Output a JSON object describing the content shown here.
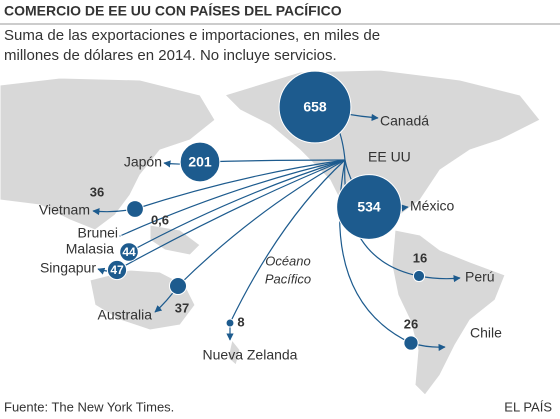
{
  "header": {
    "title": "COMERCIO DE EE UU CON PAÍSES DEL PACÍFICO",
    "subtitle_lines": [
      "Suma de las exportaciones e importaciones, en miles de",
      "millones de dólares en 2014. No incluye servicios."
    ]
  },
  "hub": "EE UU",
  "ocean_lines": [
    "Océano",
    "Pacífico"
  ],
  "flows": [
    {
      "name": "Canadá",
      "value": 658
    },
    {
      "name": "Japón",
      "value": 201
    },
    {
      "name": "México",
      "value": 534
    },
    {
      "name": "Vietnam",
      "value": 36
    },
    {
      "name": "Brunei",
      "value": 0.6,
      "value_label": "0,6"
    },
    {
      "name": "Malasia",
      "value": 44
    },
    {
      "name": "Singapur",
      "value": 47
    },
    {
      "name": "Australia",
      "value": 37
    },
    {
      "name": "Nueva Zelanda",
      "value": 8
    },
    {
      "name": "Perú",
      "value": 16
    },
    {
      "name": "Chile",
      "value": 26
    }
  ],
  "color": "#1d5b8e",
  "footer": {
    "source": "Fuente: The New York Times.",
    "brand": "EL PAÍS"
  }
}
